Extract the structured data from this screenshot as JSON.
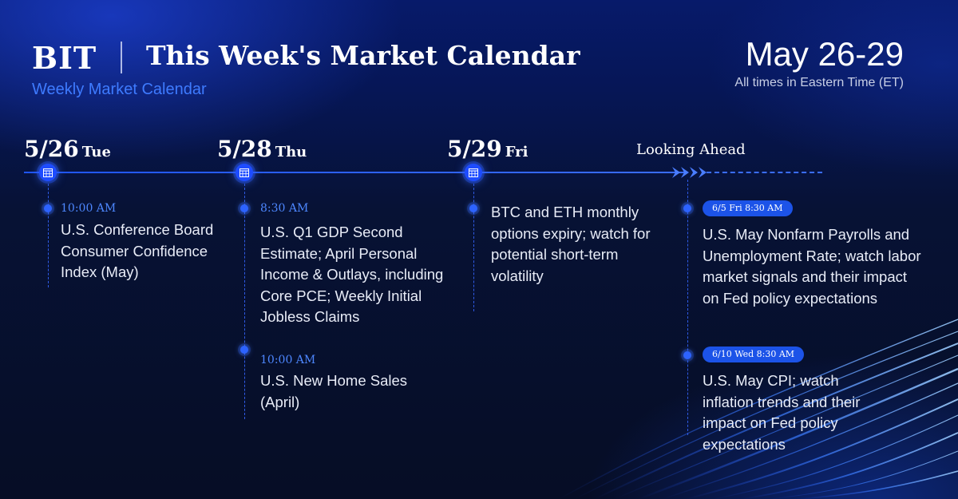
{
  "header": {
    "brand": "BIT",
    "title": "This Week's Market Calendar",
    "subtitle": "Weekly Market Calendar",
    "date_range": "May 26-29",
    "timezone": "All times in Eastern Time (ET)"
  },
  "days": [
    {
      "date": "5/26",
      "day": "Tue",
      "events": [
        {
          "time": "10:00 AM",
          "text": "U.S. Conference Board Consumer Confidence Index (May)"
        }
      ]
    },
    {
      "date": "5/28",
      "day": "Thu",
      "events": [
        {
          "time": "8:30 AM",
          "text": "U.S. Q1 GDP Second Estimate; April Personal Income & Outlays, including Core PCE; Weekly Initial Jobless Claims"
        },
        {
          "time": "10:00 AM",
          "text": "U.S. New Home Sales (April)"
        }
      ]
    },
    {
      "date": "5/29",
      "day": "Fri",
      "events": [
        {
          "time": "",
          "text": "BTC and ETH monthly options expiry; watch for potential short-term volatility"
        }
      ]
    }
  ],
  "looking_ahead": {
    "label": "Looking Ahead",
    "events": [
      {
        "tag": "6/5 Fri 8:30 AM",
        "text": "U.S. May Nonfarm Payrolls and Unemployment Rate; watch labor market signals and their impact on Fed policy expectations"
      },
      {
        "tag": "6/10 Wed 8:30 AM",
        "text": "U.S. May CPI; watch inflation trends and their impact on Fed policy expectations"
      }
    ]
  },
  "icons": {
    "day_marker": "calendar-icon",
    "timeline_end": "chevron-arrow-icon"
  },
  "colors": {
    "accent": "#1e4cff",
    "subtitle": "#3e7bff",
    "time": "#4d87ff",
    "background": "#071235"
  }
}
